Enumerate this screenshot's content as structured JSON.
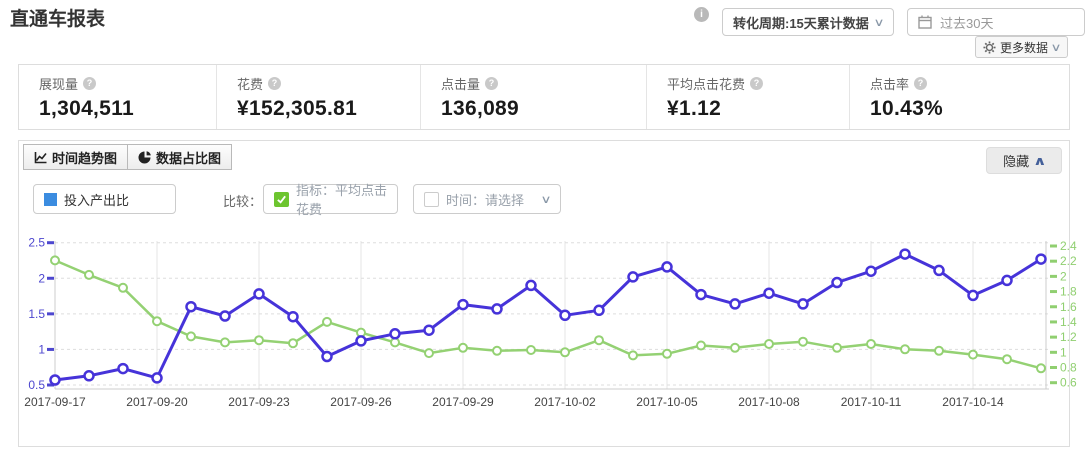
{
  "header": {
    "title": "直通车报表",
    "conversion_dropdown": "转化周期:15天累计数据",
    "date_range": "过去30天",
    "more_data_label": "更多数据"
  },
  "stats": [
    {
      "label": "展现量",
      "value": "1,304,511"
    },
    {
      "label": "花费",
      "value": "¥152,305.81"
    },
    {
      "label": "点击量",
      "value": "136,089"
    },
    {
      "label": "平均点击花费",
      "value": "¥1.12"
    },
    {
      "label": "点击率",
      "value": "10.43%"
    }
  ],
  "panel": {
    "tabs": [
      {
        "label": "时间趋势图"
      },
      {
        "label": "数据占比图"
      }
    ],
    "hide_button": "隐藏",
    "legend_label": "投入产出比",
    "compare_label": "比较：",
    "metric_checkbox": "指标：平均点击花费",
    "time_checkbox": "时间：请选择"
  },
  "colors": {
    "series_blue": "#4633d9",
    "series_green": "#94d173",
    "axis_blue": "#4d47cf",
    "axis_green": "#90cf70",
    "grid": "#e6e6e6",
    "axis_line": "#ccc",
    "x_label": "#444",
    "check_green": "#6dc52f",
    "legend_blue": "#3b8ce0"
  },
  "chart_data": {
    "type": "line",
    "title": "时间趋势图",
    "x": [
      "2017-09-17",
      "2017-09-18",
      "2017-09-19",
      "2017-09-20",
      "2017-09-21",
      "2017-09-22",
      "2017-09-23",
      "2017-09-24",
      "2017-09-25",
      "2017-09-26",
      "2017-09-27",
      "2017-09-28",
      "2017-09-29",
      "2017-09-30",
      "2017-10-01",
      "2017-10-02",
      "2017-10-03",
      "2017-10-04",
      "2017-10-05",
      "2017-10-06",
      "2017-10-07",
      "2017-10-08",
      "2017-10-09",
      "2017-10-10",
      "2017-10-11",
      "2017-10-12",
      "2017-10-13",
      "2017-10-14",
      "2017-10-15",
      "2017-10-16"
    ],
    "x_label_every": 3,
    "series": [
      {
        "name": "投入产出比",
        "axis": "left",
        "values": [
          0.57,
          0.63,
          0.73,
          0.6,
          1.6,
          1.47,
          1.78,
          1.46,
          0.9,
          1.12,
          1.22,
          1.27,
          1.63,
          1.57,
          1.9,
          1.48,
          1.55,
          2.02,
          2.16,
          1.77,
          1.64,
          1.79,
          1.64,
          1.94,
          2.1,
          2.34,
          2.11,
          1.76,
          1.97,
          2.27
        ]
      },
      {
        "name": "平均点击花费",
        "axis": "right",
        "values": [
          2.21,
          2.02,
          1.85,
          1.41,
          1.21,
          1.13,
          1.16,
          1.12,
          1.4,
          1.26,
          1.13,
          0.99,
          1.06,
          1.02,
          1.03,
          1.0,
          1.16,
          0.96,
          0.98,
          1.09,
          1.06,
          1.11,
          1.14,
          1.06,
          1.11,
          1.04,
          1.02,
          0.97,
          0.91,
          0.79
        ]
      }
    ],
    "left_axis": {
      "min": 0.5,
      "max": 2.5,
      "ticks": [
        2.5,
        2,
        1.5,
        1,
        0.5
      ]
    },
    "right_axis": {
      "min": 0.6,
      "max": 2.4,
      "ticks": [
        2.4,
        2.2,
        2,
        1.8,
        1.6,
        1.4,
        1.2,
        1,
        0.8,
        0.6
      ]
    },
    "grid": "on",
    "legend_position": "top-left"
  }
}
